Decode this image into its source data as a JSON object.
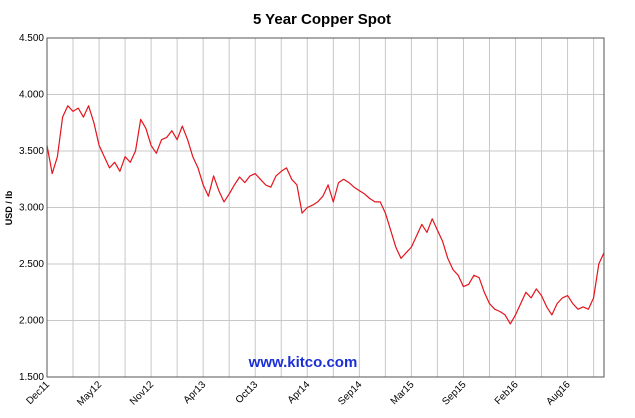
{
  "chart_data": {
    "type": "line",
    "title": "5 Year Copper Spot",
    "y_label": "USD / lb",
    "annotation": "www.kitco.com",
    "categories": [
      "Dec11",
      null,
      null,
      null,
      null,
      null,
      null,
      null,
      null,
      null,
      "May12",
      null,
      null,
      null,
      null,
      null,
      null,
      null,
      null,
      null,
      "Nov12",
      null,
      null,
      null,
      null,
      null,
      null,
      null,
      null,
      null,
      "Apr13",
      null,
      null,
      null,
      null,
      null,
      null,
      null,
      null,
      null,
      "Oct13",
      null,
      null,
      null,
      null,
      null,
      null,
      null,
      null,
      null,
      "Apr14",
      null,
      null,
      null,
      null,
      null,
      null,
      null,
      null,
      null,
      "Sep14",
      null,
      null,
      null,
      null,
      null,
      null,
      null,
      null,
      null,
      "Mar15",
      null,
      null,
      null,
      null,
      null,
      null,
      null,
      null,
      null,
      "Sep15",
      null,
      null,
      null,
      null,
      null,
      null,
      null,
      null,
      null,
      "Feb16",
      null,
      null,
      null,
      null,
      null,
      null,
      null,
      null,
      null,
      "Aug16",
      null,
      null,
      null,
      null,
      null,
      null,
      null
    ],
    "series": [
      {
        "color": "#e3141c",
        "values": [
          3.55,
          3.3,
          3.45,
          3.8,
          3.9,
          3.85,
          3.88,
          3.8,
          3.9,
          3.75,
          3.55,
          3.45,
          3.35,
          3.4,
          3.32,
          3.45,
          3.4,
          3.5,
          3.78,
          3.7,
          3.55,
          3.48,
          3.6,
          3.62,
          3.68,
          3.6,
          3.72,
          3.6,
          3.45,
          3.35,
          3.2,
          3.1,
          3.28,
          3.15,
          3.05,
          3.12,
          3.2,
          3.27,
          3.22,
          3.28,
          3.3,
          3.25,
          3.2,
          3.18,
          3.28,
          3.32,
          3.35,
          3.25,
          3.2,
          2.95,
          3.0,
          3.02,
          3.05,
          3.1,
          3.2,
          3.05,
          3.22,
          3.25,
          3.22,
          3.18,
          3.15,
          3.12,
          3.08,
          3.05,
          3.05,
          2.95,
          2.8,
          2.65,
          2.55,
          2.6,
          2.65,
          2.75,
          2.85,
          2.78,
          2.9,
          2.8,
          2.7,
          2.55,
          2.45,
          2.4,
          2.3,
          2.32,
          2.4,
          2.38,
          2.25,
          2.15,
          2.1,
          2.08,
          2.05,
          1.97,
          2.05,
          2.15,
          2.25,
          2.2,
          2.28,
          2.22,
          2.12,
          2.05,
          2.15,
          2.2,
          2.22,
          2.15,
          2.1,
          2.12,
          2.1,
          2.2,
          2.5,
          2.6
        ]
      }
    ],
    "ylim": [
      1.5,
      4.5
    ],
    "yticks": [
      {
        "value": 1.5,
        "label": "1.500"
      },
      {
        "value": 2,
        "label": "2.000"
      },
      {
        "value": 2.5,
        "label": "2.500"
      },
      {
        "value": 3,
        "label": "3.000"
      },
      {
        "value": 3.5,
        "label": "3.500"
      },
      {
        "value": 4,
        "label": "4.000"
      },
      {
        "value": 4.5,
        "label": "4.500"
      }
    ],
    "grid": true
  }
}
